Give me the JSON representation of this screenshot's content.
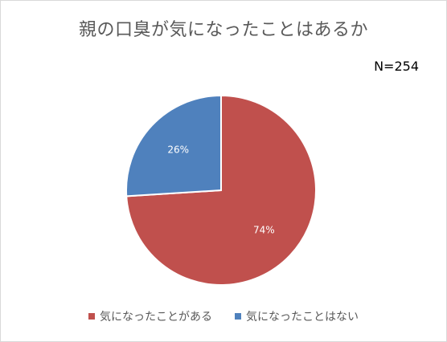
{
  "chart_data": {
    "type": "pie",
    "title": "親の口臭が気になったことはあるか",
    "note": "N=254",
    "categories": [
      "気になったことがある",
      "気になったことはない"
    ],
    "values": [
      74,
      26
    ],
    "labels": [
      "74%",
      "26%"
    ],
    "colors": [
      "#C0504D",
      "#4F81BD"
    ],
    "start_angle_deg": 0,
    "direction": "clockwise",
    "legend_position": "bottom"
  }
}
